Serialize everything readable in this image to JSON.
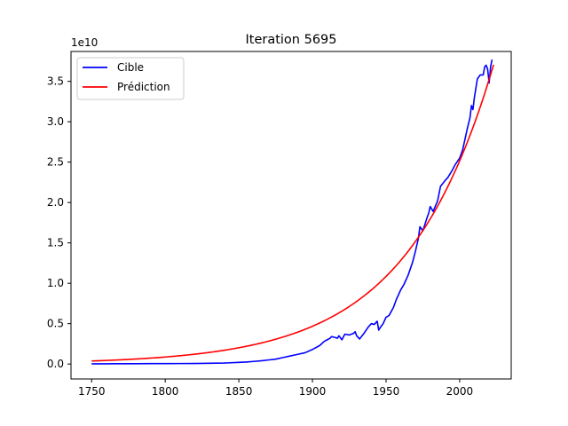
{
  "chart_data": {
    "type": "line",
    "title": "Iteration 5695",
    "xlabel": "",
    "ylabel": "",
    "y_offset_text": "1e10",
    "xlim": [
      1736,
      2035
    ],
    "ylim": [
      -1.85,
      38.7
    ],
    "x_ticks": [
      1750,
      1800,
      1850,
      1900,
      1950,
      2000
    ],
    "y_ticks": [
      0.0,
      0.5,
      1.0,
      1.5,
      2.0,
      2.5,
      3.0,
      3.5
    ],
    "y_scale_multiplier": 10,
    "grid": false,
    "legend_position": "top-left",
    "series": [
      {
        "name": "Cible",
        "color": "#0000ff",
        "x": [
          1750,
          1760,
          1770,
          1780,
          1790,
          1800,
          1810,
          1820,
          1830,
          1840,
          1850,
          1855,
          1860,
          1865,
          1870,
          1875,
          1880,
          1885,
          1890,
          1895,
          1900,
          1905,
          1908,
          1910,
          1912,
          1913,
          1915,
          1917,
          1918,
          1920,
          1922,
          1925,
          1928,
          1929,
          1930,
          1932,
          1935,
          1938,
          1940,
          1942,
          1944,
          1945,
          1946,
          1948,
          1950,
          1952,
          1955,
          1957,
          1960,
          1962,
          1965,
          1968,
          1970,
          1972,
          1973,
          1975,
          1978,
          1979,
          1980,
          1982,
          1985,
          1987,
          1990,
          1992,
          1995,
          1997,
          2000,
          2002,
          2005,
          2007,
          2008,
          2009,
          2010,
          2012,
          2014,
          2016,
          2017,
          2018,
          2019,
          2020,
          2021,
          2022
        ],
        "y": [
          0.03,
          0.03,
          0.04,
          0.04,
          0.05,
          0.05,
          0.06,
          0.07,
          0.09,
          0.12,
          0.2,
          0.25,
          0.32,
          0.4,
          0.5,
          0.6,
          0.8,
          1.0,
          1.2,
          1.4,
          1.8,
          2.3,
          2.8,
          3.0,
          3.2,
          3.4,
          3.3,
          3.2,
          3.5,
          3.0,
          3.7,
          3.6,
          3.8,
          4.0,
          3.5,
          3.1,
          3.8,
          4.6,
          5.0,
          4.9,
          5.3,
          4.2,
          4.5,
          5.0,
          5.8,
          6.0,
          7.0,
          8.0,
          9.2,
          9.8,
          11.0,
          12.6,
          14.0,
          15.6,
          17.0,
          16.5,
          18.2,
          18.7,
          19.5,
          18.9,
          20.2,
          22.0,
          22.7,
          23.1,
          24.0,
          24.7,
          25.5,
          26.5,
          29.0,
          30.5,
          32.0,
          31.5,
          33.0,
          35.3,
          35.8,
          35.8,
          36.8,
          37.0,
          36.5,
          34.8,
          36.8,
          37.7
        ]
      },
      {
        "name": "Prédiction",
        "color": "#ff0000",
        "model": {
          "a": 0.3745,
          "b": 0.01683,
          "x0": 1750
        },
        "x": [
          1750,
          2023
        ]
      }
    ]
  }
}
